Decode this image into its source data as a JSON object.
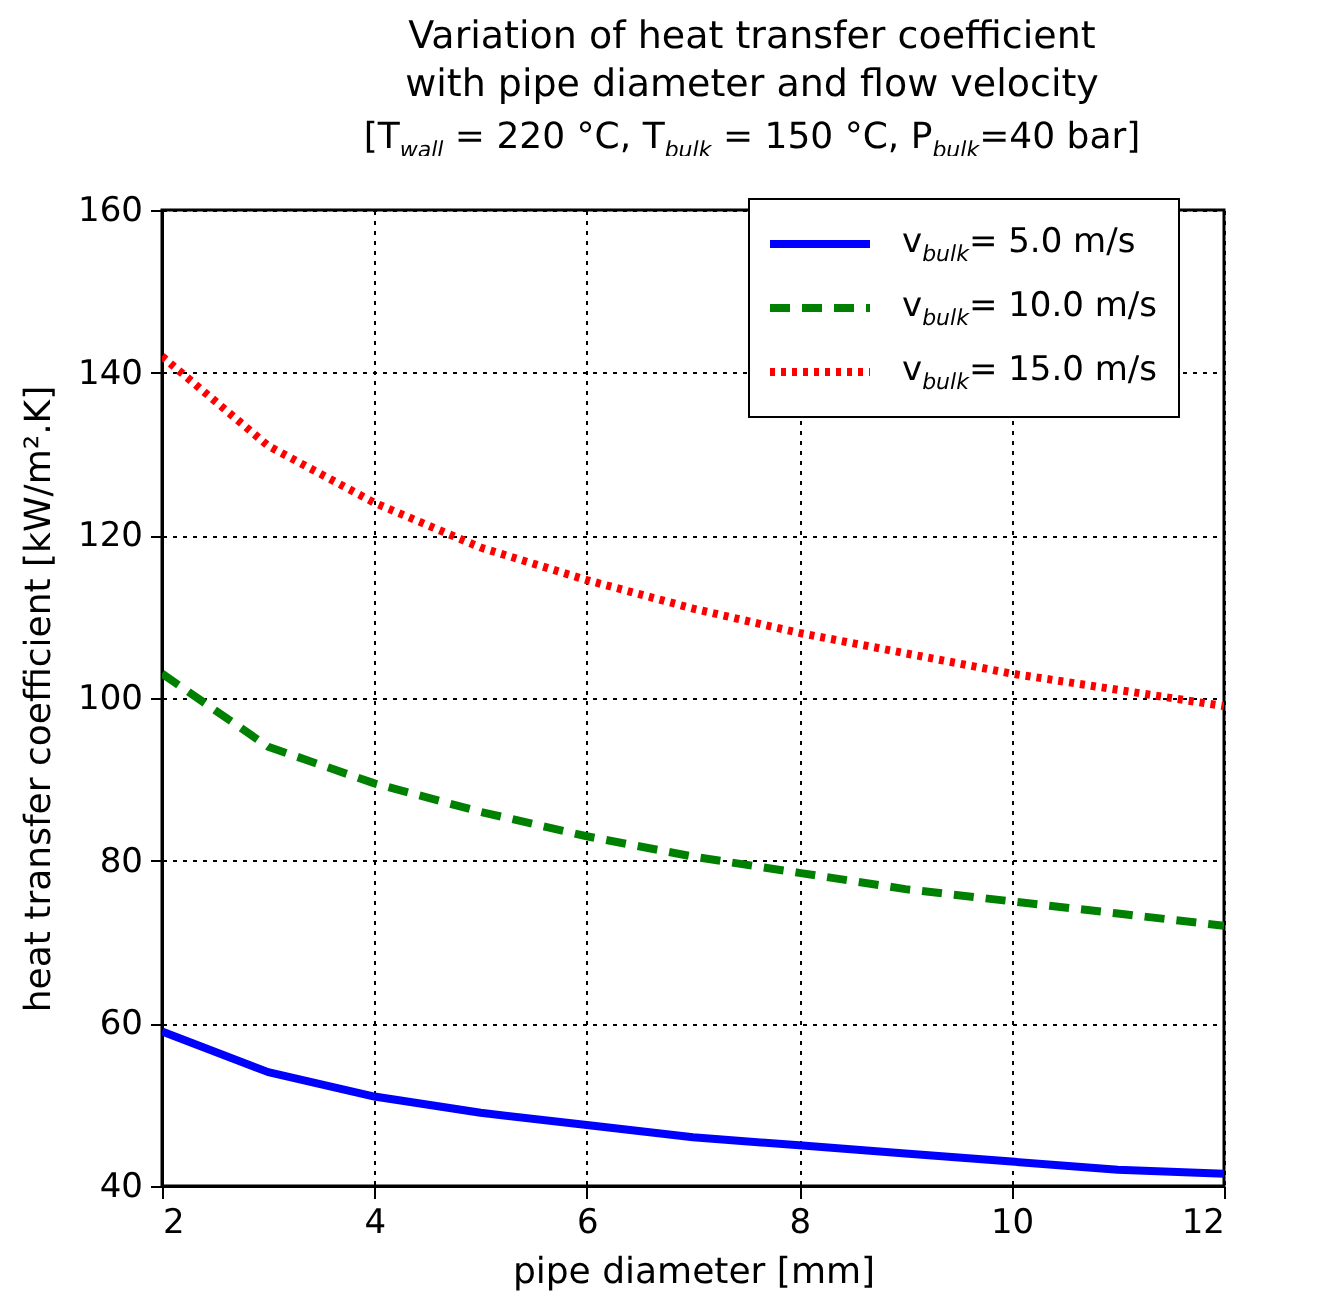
{
  "chart_data": {
    "type": "line",
    "title": "Variation of heat transfer coefficient\nwith pipe diameter and flow velocity",
    "subtitle": "[T$_{wall}$ = 220 °C, T$_{bulk}$ = 150 °C, P$_{bulk}$=40 bar]",
    "xlabel": "pipe diameter [mm]",
    "ylabel": "heat transfer coefficient [kW/m².K]",
    "x": [
      2,
      3,
      4,
      5,
      6,
      7,
      8,
      9,
      10,
      11,
      12
    ],
    "series": [
      {
        "name": "v$_{bulk}$= 5.0 m/s",
        "color": "#0000ff",
        "line_style": "solid",
        "values": [
          59,
          54,
          51,
          49,
          47.5,
          46,
          45,
          44,
          43,
          42,
          41.5
        ]
      },
      {
        "name": "v$_{bulk}$= 10.0 m/s",
        "color": "#008000",
        "line_style": "dashed",
        "values": [
          103,
          94,
          89.5,
          86,
          83,
          80.5,
          78.5,
          76.5,
          75,
          73.5,
          72
        ]
      },
      {
        "name": "v$_{bulk}$= 15.0 m/s",
        "color": "#ff0000",
        "line_style": "dotted",
        "values": [
          142,
          131,
          124,
          118.5,
          114.5,
          111,
          108,
          105.5,
          103,
          101,
          99
        ]
      }
    ],
    "xlim": [
      2,
      12
    ],
    "xticks": [
      2,
      4,
      6,
      8,
      10,
      12
    ],
    "ylim": [
      40,
      160
    ],
    "yticks": [
      40,
      60,
      80,
      100,
      120,
      140,
      160
    ],
    "grid": true,
    "legend": "top right"
  }
}
